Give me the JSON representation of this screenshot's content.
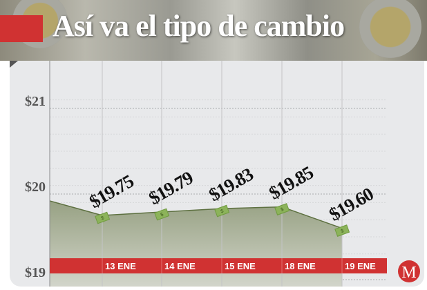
{
  "header": {
    "title": "Así va el tipo de cambio"
  },
  "chart_data": {
    "type": "area",
    "categories": [
      "13 ENE",
      "14 ENE",
      "15 ENE",
      "18 ENE",
      "19 ENE"
    ],
    "values": [
      19.75,
      19.79,
      19.83,
      19.85,
      19.6
    ],
    "start_value": 19.92,
    "labels": [
      "$19.75",
      "$19.79",
      "$19.83",
      "$19.85",
      "$19.60"
    ],
    "yticks": [
      {
        "v": 21,
        "label": "$21"
      },
      {
        "v": 20,
        "label": "$20"
      },
      {
        "v": 19,
        "label": "$19"
      }
    ],
    "ylim": [
      19,
      21.1
    ],
    "grid": true,
    "colors": {
      "fill": "#9aa486",
      "line": "#5d7040",
      "band": "#d03232",
      "marker": "#8cb35a"
    }
  },
  "logo": {
    "letter": "M"
  }
}
